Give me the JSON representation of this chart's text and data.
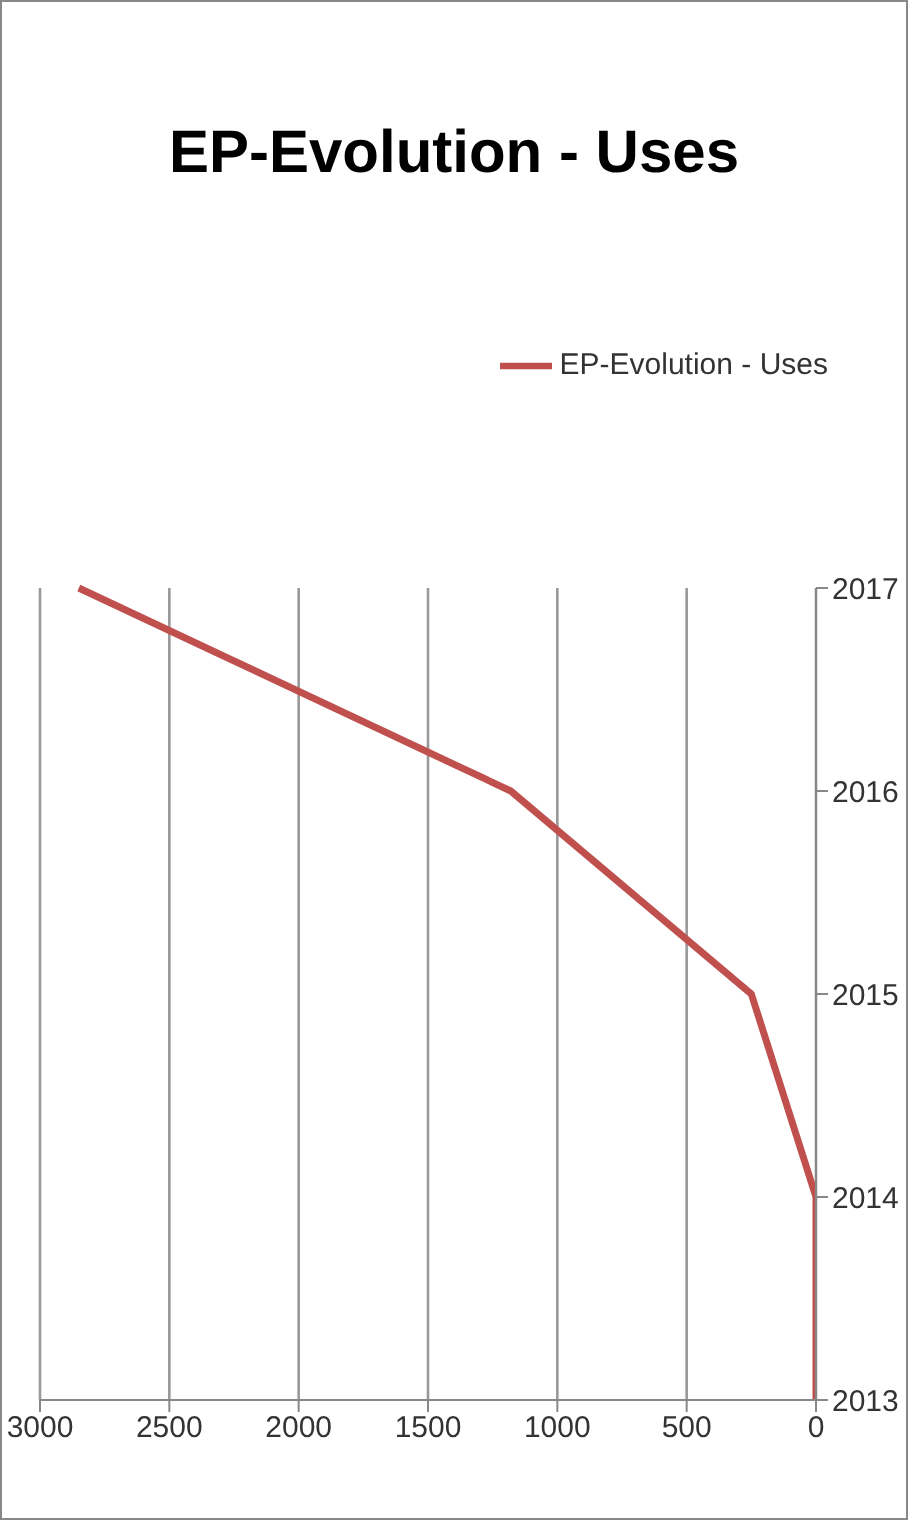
{
  "chart_data": {
    "type": "line",
    "title": "EP-Evolution - Uses",
    "orientation": "horizontal",
    "categories": [
      "2017",
      "2016",
      "2015",
      "2014",
      "2013"
    ],
    "series": [
      {
        "name": "EP-Evolution - Uses",
        "color": "#c0504d",
        "values": [
          2850,
          1180,
          250,
          0,
          0
        ]
      }
    ],
    "xlim": [
      3000,
      0
    ],
    "xticks": [
      3000,
      2500,
      2000,
      1500,
      1000,
      500,
      0
    ],
    "grid": "x",
    "legend": "top right",
    "marker": "none"
  }
}
